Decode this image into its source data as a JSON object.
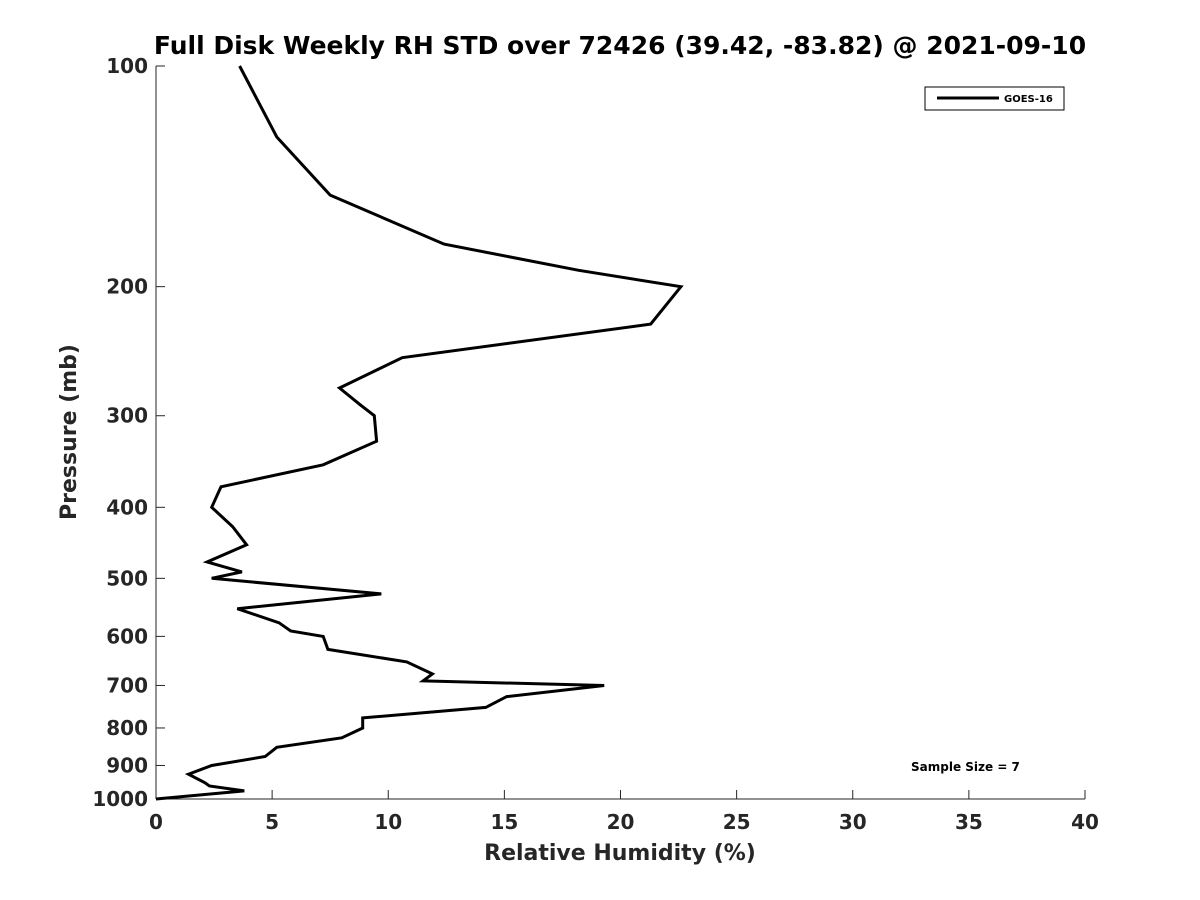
{
  "chart_data": {
    "type": "line",
    "title": "Full Disk Weekly RH STD over 72426 (39.42, -83.82) @ 2021-09-10",
    "xlabel": "Relative Humidity (%)",
    "ylabel": "Pressure (mb)",
    "xlim": [
      0,
      40
    ],
    "ylim": [
      100,
      1000
    ],
    "y_scale": "log",
    "y_reversed": true,
    "x_ticks": [
      "0",
      "5",
      "10",
      "15",
      "20",
      "25",
      "30",
      "35",
      "40"
    ],
    "x_tick_values": [
      0,
      5,
      10,
      15,
      20,
      25,
      30,
      35,
      40
    ],
    "y_ticks": [
      "100",
      "200",
      "300",
      "400",
      "500",
      "600",
      "700",
      "800",
      "900",
      "1000"
    ],
    "y_tick_values": [
      100,
      200,
      300,
      400,
      500,
      600,
      700,
      800,
      900,
      1000
    ],
    "grid": false,
    "legend_position": "top-right",
    "series": [
      {
        "name": "GOES-16",
        "color": "#000000",
        "x": [
          3.6,
          5.2,
          7.5,
          12.4,
          18.2,
          22.6,
          21.3,
          10.6,
          7.9,
          8.8,
          9.4,
          9.5,
          7.2,
          2.8,
          2.4,
          3.3,
          3.9,
          2.2,
          3.7,
          2.4,
          9.7,
          3.5,
          5.3,
          5.8,
          7.2,
          7.4,
          10.8,
          11.9,
          11.5,
          19.3,
          15.1,
          14.2,
          8.9,
          8.9,
          8.0,
          5.2,
          4.7,
          2.4,
          1.4,
          2.1,
          2.3,
          3.8,
          0.0
        ],
        "y": [
          100,
          125,
          150,
          175,
          190,
          200,
          225,
          250,
          275,
          290,
          300,
          325,
          350,
          375,
          400,
          425,
          450,
          475,
          490,
          500,
          525,
          550,
          575,
          590,
          600,
          625,
          650,
          675,
          690,
          700,
          725,
          750,
          775,
          800,
          825,
          850,
          875,
          900,
          925,
          950,
          960,
          975,
          1000
        ]
      }
    ],
    "annotations": [
      "Sample Size = 7"
    ]
  }
}
